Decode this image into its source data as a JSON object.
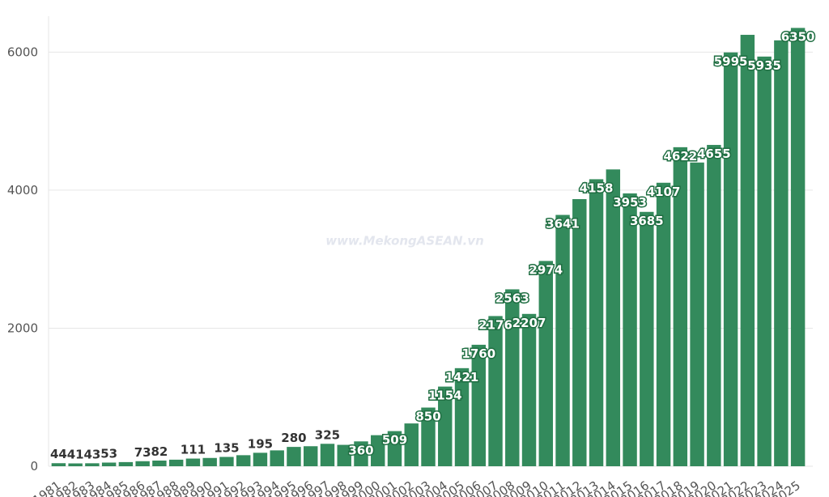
{
  "chart_data": {
    "type": "bar",
    "watermark": "www.MekongASEAN.vn",
    "categories": [
      "1981",
      "1982",
      "1983",
      "1984",
      "1985",
      "1986",
      "1987",
      "1988",
      "1989",
      "1990",
      "1991",
      "1992",
      "1993",
      "1994",
      "1995",
      "1996",
      "1997",
      "1998",
      "1999",
      "2000",
      "2001",
      "2002",
      "2003",
      "2004",
      "2005",
      "2006",
      "2007",
      "2008",
      "2009",
      "2010",
      "2011",
      "2012",
      "2013",
      "2014",
      "2015",
      "2016",
      "2017",
      "2018",
      "2019",
      "2020",
      "2021",
      "2022",
      "2023",
      "2024",
      "2025"
    ],
    "values": [
      44,
      41,
      43,
      53,
      60,
      73,
      82,
      95,
      111,
      120,
      135,
      160,
      195,
      230,
      280,
      290,
      325,
      310,
      360,
      450,
      509,
      620,
      850,
      1154,
      1421,
      1760,
      2176,
      2563,
      2207,
      2974,
      3641,
      3870,
      4158,
      4300,
      3953,
      3685,
      4107,
      4622,
      4400,
      4655,
      5995,
      6250,
      5935,
      6170,
      6350
    ],
    "value_labels": [
      "44",
      "41",
      "43",
      "53",
      null,
      "73",
      "82",
      null,
      "111",
      null,
      "135",
      null,
      "195",
      null,
      "280",
      null,
      "325",
      null,
      "360",
      null,
      "509",
      null,
      "850",
      "1154",
      "1421",
      "1760",
      "2176",
      "2563",
      "2207",
      "2974",
      "3641",
      null,
      "4158",
      null,
      "3953",
      "3685",
      "4107",
      "4622",
      null,
      "4655",
      "5995",
      null,
      "5935",
      null,
      "6350"
    ],
    "color": "#338a5c",
    "ylim": [
      0,
      6520
    ],
    "yticks": [
      0,
      2000,
      4000,
      6000
    ],
    "grid": true
  }
}
